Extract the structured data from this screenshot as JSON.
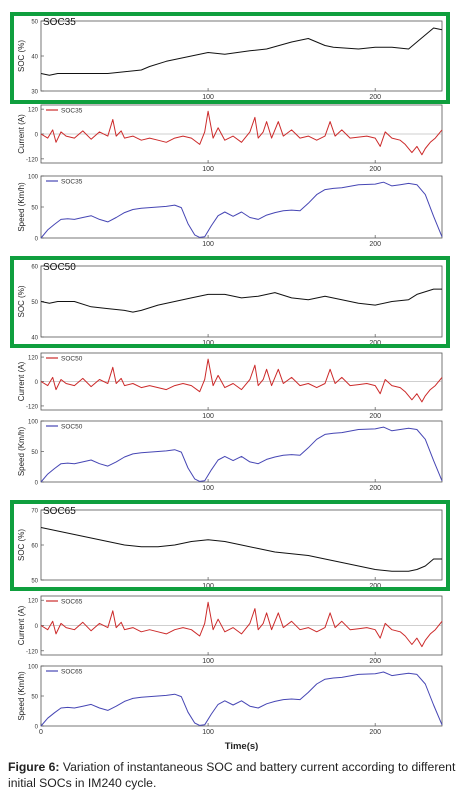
{
  "figure": {
    "caption_label": "Figure 6:",
    "caption_text": " Variation of instantaneous SOC and battery current according to different initial SOCs in IM240 cycle.",
    "xlabel": "Time(s)"
  },
  "colors": {
    "highlight": "#0f9f3e",
    "soc": "#111111",
    "current": "#cc2a2a",
    "speed": "#4646b4",
    "zero_line": "#a0a0a0"
  },
  "chart_data": [
    {
      "type": "line",
      "group": "SOC35",
      "title": "SOC35",
      "ylabel": "SOC (%)",
      "xlim": [
        0,
        240
      ],
      "ylim": [
        30,
        50
      ],
      "yticks": [
        30,
        40,
        50
      ],
      "xticks": [
        100,
        200
      ],
      "series": [
        {
          "name": "",
          "x": [
            0,
            5,
            10,
            15,
            40,
            50,
            60,
            65,
            75,
            90,
            100,
            110,
            125,
            135,
            150,
            160,
            170,
            175,
            190,
            200,
            210,
            220,
            225,
            235,
            240
          ],
          "y": [
            35,
            34.5,
            35,
            35,
            35,
            35.5,
            36,
            37,
            38.5,
            40,
            41,
            40.5,
            41.5,
            42,
            44,
            45,
            43,
            42.5,
            42,
            42.5,
            42.5,
            42,
            44,
            48,
            47.5
          ]
        }
      ]
    },
    {
      "type": "line",
      "group": "SOC35",
      "legend": [
        "SOC35"
      ],
      "ylabel": "Current (A)",
      "xlim": [
        0,
        240
      ],
      "ylim": [
        -140,
        140
      ],
      "yticks": [
        -120,
        0,
        120
      ],
      "xticks": [
        100,
        200
      ],
      "series": [
        {
          "name": "SOC35",
          "x": [
            0,
            4,
            7,
            9,
            12,
            15,
            20,
            25,
            30,
            35,
            40,
            43,
            45,
            48,
            50,
            55,
            60,
            65,
            70,
            75,
            80,
            85,
            90,
            95,
            98,
            100,
            103,
            106,
            110,
            115,
            120,
            125,
            128,
            130,
            133,
            135,
            138,
            142,
            145,
            150,
            155,
            160,
            165,
            170,
            173,
            176,
            180,
            185,
            190,
            195,
            200,
            203,
            206,
            210,
            215,
            218,
            222,
            225,
            228,
            230,
            233,
            236,
            240
          ],
          "y": [
            0,
            -20,
            20,
            -40,
            10,
            -10,
            -20,
            15,
            -25,
            10,
            -10,
            70,
            -10,
            15,
            -20,
            -10,
            -30,
            -20,
            -30,
            -40,
            -20,
            -10,
            -20,
            -50,
            10,
            110,
            -20,
            30,
            -30,
            -10,
            -40,
            10,
            80,
            -20,
            10,
            60,
            -20,
            60,
            -10,
            20,
            -20,
            -10,
            -30,
            -10,
            60,
            -10,
            20,
            -20,
            -15,
            -10,
            -20,
            -60,
            10,
            -20,
            -30,
            -50,
            -90,
            -60,
            -100,
            -70,
            -40,
            -20,
            20
          ]
        }
      ]
    },
    {
      "type": "line",
      "group": "SOC35",
      "legend": [
        "SOC35"
      ],
      "ylabel": "Speed (Km/h)",
      "xlim": [
        0,
        240
      ],
      "ylim": [
        0,
        100
      ],
      "yticks": [
        0,
        50,
        100
      ],
      "xticks": [
        100,
        200
      ],
      "series": [
        {
          "name": "SOC35",
          "x": [
            0,
            4,
            8,
            12,
            16,
            20,
            25,
            30,
            35,
            40,
            45,
            50,
            55,
            60,
            65,
            70,
            75,
            80,
            84,
            88,
            92,
            95,
            98,
            102,
            106,
            110,
            115,
            120,
            125,
            130,
            135,
            140,
            145,
            150,
            155,
            160,
            165,
            170,
            175,
            180,
            190,
            200,
            205,
            210,
            215,
            220,
            225,
            230,
            235,
            240
          ],
          "y": [
            0,
            13,
            22,
            30,
            31,
            30,
            33,
            36,
            30,
            26,
            33,
            41,
            46,
            48,
            49,
            50,
            51,
            53,
            49,
            23,
            5,
            1,
            2,
            20,
            36,
            42,
            35,
            42,
            33,
            30,
            37,
            41,
            44,
            45,
            44,
            56,
            70,
            78,
            80,
            81,
            86,
            87,
            90,
            84,
            86,
            88,
            86,
            70,
            35,
            2
          ]
        }
      ]
    },
    {
      "type": "line",
      "group": "SOC50",
      "title": "SOC50",
      "ylabel": "SOC (%)",
      "xlim": [
        0,
        240
      ],
      "ylim": [
        40,
        60
      ],
      "yticks": [
        40,
        50,
        60
      ],
      "xticks": [
        100,
        200
      ],
      "series": [
        {
          "name": "",
          "x": [
            0,
            5,
            10,
            20,
            30,
            40,
            50,
            55,
            60,
            70,
            80,
            90,
            100,
            110,
            120,
            130,
            140,
            150,
            160,
            170,
            180,
            190,
            200,
            210,
            220,
            225,
            235,
            240
          ],
          "y": [
            50,
            49.5,
            50,
            50,
            48.5,
            48,
            47.5,
            47,
            47.5,
            49,
            50,
            51,
            52,
            52,
            51,
            51.5,
            52.5,
            51,
            50.5,
            51.5,
            50.5,
            49.5,
            49,
            50,
            50.5,
            52,
            53.5,
            53.5
          ]
        }
      ]
    },
    {
      "type": "line",
      "group": "SOC50",
      "legend": [
        "SOC50"
      ],
      "ylabel": "Current (A)",
      "xlim": [
        0,
        240
      ],
      "ylim": [
        -140,
        140
      ],
      "yticks": [
        -120,
        0,
        120
      ],
      "xticks": [
        100,
        200
      ],
      "series": [
        {
          "name": "SOC50",
          "x": [
            0,
            4,
            7,
            9,
            12,
            15,
            20,
            25,
            30,
            35,
            40,
            43,
            45,
            48,
            50,
            55,
            60,
            65,
            70,
            75,
            80,
            85,
            90,
            95,
            98,
            100,
            103,
            106,
            110,
            115,
            120,
            125,
            128,
            130,
            133,
            135,
            138,
            142,
            145,
            150,
            155,
            160,
            165,
            170,
            173,
            176,
            180,
            185,
            190,
            195,
            200,
            203,
            206,
            210,
            215,
            218,
            222,
            225,
            228,
            230,
            233,
            236,
            240
          ],
          "y": [
            0,
            -20,
            20,
            -40,
            10,
            -10,
            -20,
            15,
            -25,
            10,
            -10,
            70,
            -10,
            15,
            -20,
            -10,
            -30,
            -20,
            -30,
            -40,
            -20,
            -10,
            -20,
            -50,
            10,
            110,
            -20,
            30,
            -30,
            -10,
            -40,
            10,
            80,
            -20,
            10,
            60,
            -20,
            60,
            -10,
            20,
            -20,
            -10,
            -30,
            -10,
            60,
            -10,
            20,
            -20,
            -15,
            -10,
            -20,
            -60,
            10,
            -20,
            -30,
            -50,
            -90,
            -60,
            -100,
            -70,
            -40,
            -20,
            20
          ]
        }
      ]
    },
    {
      "type": "line",
      "group": "SOC50",
      "legend": [
        "SOC50"
      ],
      "ylabel": "Speed (Km/h)",
      "xlim": [
        0,
        240
      ],
      "ylim": [
        0,
        100
      ],
      "yticks": [
        0,
        50,
        100
      ],
      "xticks": [
        100,
        200
      ],
      "series": [
        {
          "name": "SOC50",
          "x": [
            0,
            4,
            8,
            12,
            16,
            20,
            25,
            30,
            35,
            40,
            45,
            50,
            55,
            60,
            65,
            70,
            75,
            80,
            84,
            88,
            92,
            95,
            98,
            102,
            106,
            110,
            115,
            120,
            125,
            130,
            135,
            140,
            145,
            150,
            155,
            160,
            165,
            170,
            175,
            180,
            190,
            200,
            205,
            210,
            215,
            220,
            225,
            230,
            235,
            240
          ],
          "y": [
            0,
            13,
            22,
            30,
            31,
            30,
            33,
            36,
            30,
            26,
            33,
            41,
            46,
            48,
            49,
            50,
            51,
            53,
            49,
            23,
            5,
            1,
            2,
            20,
            36,
            42,
            35,
            42,
            33,
            30,
            37,
            41,
            44,
            45,
            44,
            56,
            70,
            78,
            80,
            81,
            86,
            87,
            90,
            84,
            86,
            88,
            86,
            70,
            35,
            2
          ]
        }
      ]
    },
    {
      "type": "line",
      "group": "SOC65",
      "title": "SOC65",
      "ylabel": "SOC (%)",
      "xlim": [
        0,
        240
      ],
      "ylim": [
        50,
        70
      ],
      "yticks": [
        50,
        60,
        70
      ],
      "xticks": [
        100,
        200
      ],
      "series": [
        {
          "name": "",
          "x": [
            0,
            5,
            10,
            20,
            30,
            40,
            50,
            60,
            70,
            80,
            90,
            100,
            110,
            120,
            130,
            140,
            150,
            160,
            170,
            180,
            190,
            200,
            210,
            220,
            225,
            230,
            235,
            240
          ],
          "y": [
            65,
            64.5,
            64,
            63,
            62,
            61,
            60,
            59.5,
            59.5,
            60,
            61,
            61.5,
            61,
            60,
            59,
            58,
            57.5,
            57,
            56,
            55,
            54,
            53,
            52.5,
            52.5,
            53,
            54,
            56,
            56
          ]
        }
      ]
    },
    {
      "type": "line",
      "group": "SOC65",
      "legend": [
        "SOC65"
      ],
      "ylabel": "Current (A)",
      "xlim": [
        0,
        240
      ],
      "ylim": [
        -140,
        140
      ],
      "yticks": [
        -120,
        0,
        120
      ],
      "xticks": [
        100,
        200
      ],
      "series": [
        {
          "name": "SOC65",
          "x": [
            0,
            4,
            7,
            9,
            12,
            15,
            20,
            25,
            30,
            35,
            40,
            43,
            45,
            48,
            50,
            55,
            60,
            65,
            70,
            75,
            80,
            85,
            90,
            95,
            98,
            100,
            103,
            106,
            110,
            115,
            120,
            125,
            128,
            130,
            133,
            135,
            138,
            142,
            145,
            150,
            155,
            160,
            165,
            170,
            173,
            176,
            180,
            185,
            190,
            195,
            200,
            203,
            206,
            210,
            215,
            218,
            222,
            225,
            228,
            230,
            233,
            236,
            240
          ],
          "y": [
            0,
            -20,
            20,
            -40,
            10,
            -10,
            -20,
            15,
            -25,
            10,
            -10,
            70,
            -10,
            15,
            -20,
            -10,
            -30,
            -20,
            -30,
            -40,
            -20,
            -10,
            -20,
            -50,
            10,
            110,
            -20,
            30,
            -30,
            -10,
            -40,
            10,
            80,
            -20,
            10,
            60,
            -20,
            60,
            -10,
            20,
            -20,
            -10,
            -30,
            -10,
            60,
            -10,
            20,
            -20,
            -15,
            -10,
            -20,
            -60,
            10,
            -20,
            -30,
            -50,
            -90,
            -60,
            -100,
            -70,
            -40,
            -20,
            20
          ]
        }
      ]
    },
    {
      "type": "line",
      "group": "SOC65",
      "legend": [
        "SOC65"
      ],
      "ylabel": "Speed (Km/h)",
      "xlim": [
        0,
        240
      ],
      "ylim": [
        0,
        100
      ],
      "yticks": [
        0,
        50,
        100
      ],
      "xticks": [
        0,
        100,
        200
      ],
      "series": [
        {
          "name": "SOC65",
          "x": [
            0,
            4,
            8,
            12,
            16,
            20,
            25,
            30,
            35,
            40,
            45,
            50,
            55,
            60,
            65,
            70,
            75,
            80,
            84,
            88,
            92,
            95,
            98,
            102,
            106,
            110,
            115,
            120,
            125,
            130,
            135,
            140,
            145,
            150,
            155,
            160,
            165,
            170,
            175,
            180,
            190,
            200,
            205,
            210,
            215,
            220,
            225,
            230,
            235,
            240
          ],
          "y": [
            0,
            13,
            22,
            30,
            31,
            30,
            33,
            36,
            30,
            26,
            33,
            41,
            46,
            48,
            49,
            50,
            51,
            53,
            49,
            23,
            5,
            1,
            2,
            20,
            36,
            42,
            35,
            42,
            33,
            30,
            37,
            41,
            44,
            45,
            44,
            56,
            70,
            78,
            80,
            81,
            86,
            87,
            90,
            84,
            86,
            88,
            86,
            70,
            35,
            2
          ]
        }
      ]
    }
  ]
}
